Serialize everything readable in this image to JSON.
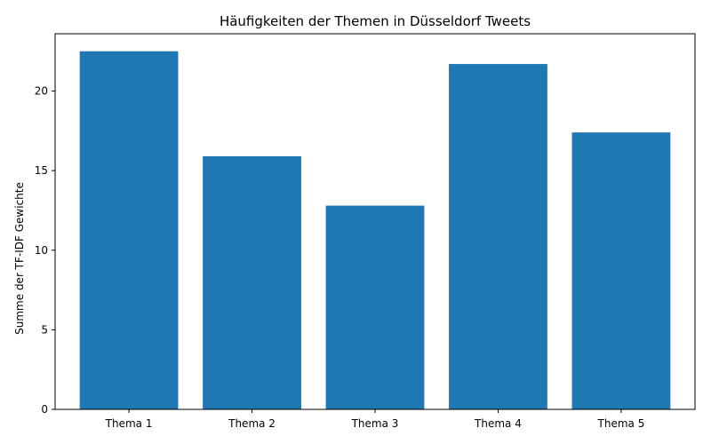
{
  "chart_data": {
    "type": "bar",
    "title": "Häufigkeiten der Themen in Düsseldorf Tweets",
    "xlabel": "",
    "ylabel": "Summe der TF-IDF Gewichte",
    "categories": [
      "Thema 1",
      "Thema 2",
      "Thema 3",
      "Thema 4",
      "Thema 5"
    ],
    "values": [
      22.5,
      15.9,
      12.8,
      21.7,
      17.4
    ],
    "ylim": [
      0,
      23.6
    ],
    "yticks": [
      0,
      5,
      10,
      15,
      20
    ],
    "bar_color": "#1f77b4",
    "grid": false,
    "legend": false
  }
}
